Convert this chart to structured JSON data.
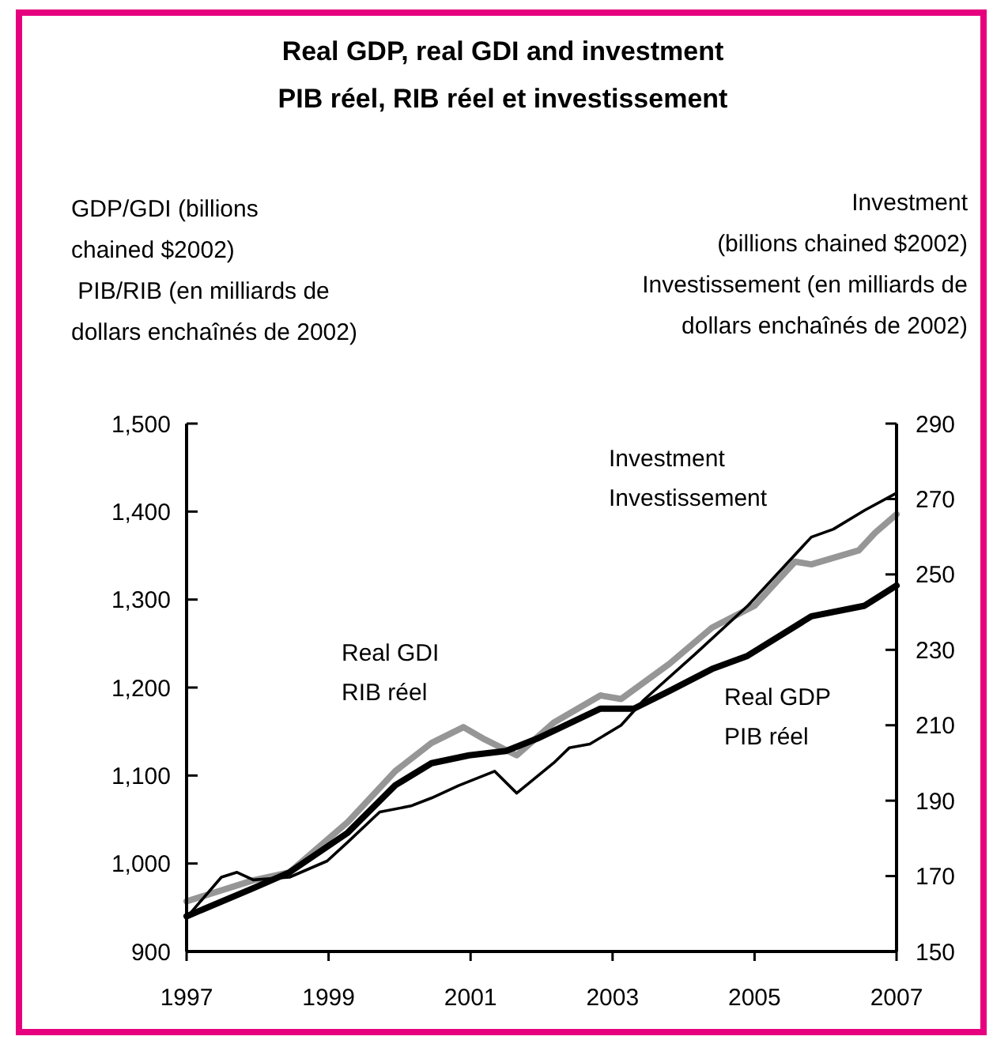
{
  "chart_data": {
    "type": "line",
    "title": "Real GDP, real GDI and investment\nPIB réel, RIB réel et investissement",
    "ylabel": "GDP/GDI (billions\nchained $2002)\n PIB/RIB (en milliards de\ndollars enchaînés de 2002)",
    "y2label": "Investment\n(billions chained $2002)\nInvestissement (en milliards de\ndollars enchaînés de 2002)",
    "xlim": [
      1997,
      2007
    ],
    "xticks": [
      1997,
      1999,
      2001,
      2003,
      2005,
      2007
    ],
    "ylim": [
      900,
      1500
    ],
    "yticks": [
      {
        "value": 900,
        "label": "900"
      },
      {
        "value": 1000,
        "label": "1,000"
      },
      {
        "value": 1100,
        "label": "1,100"
      },
      {
        "value": 1200,
        "label": "1,200"
      },
      {
        "value": 1300,
        "label": "1,300"
      },
      {
        "value": 1400,
        "label": "1,400"
      },
      {
        "value": 1500,
        "label": "1,500"
      }
    ],
    "y2lim": [
      150,
      290
    ],
    "y2ticks": [
      150,
      170,
      190,
      210,
      230,
      250,
      270,
      290
    ],
    "grid": false,
    "series": [
      {
        "name": "Real GDI\nRIB réel",
        "color": "#969696",
        "x": [
          1997,
          1997.94,
          1998.45,
          1999.27,
          1999.94,
          2000.45,
          2000.9,
          2001.2,
          2001.65,
          2002.17,
          2002.83,
          2003.12,
          2003.8,
          2004.4,
          2005.0,
          2005.57,
          2005.8,
          2006.47,
          2006.7,
          2007
        ],
        "values": [
          957,
          981,
          990,
          1047,
          1105,
          1137,
          1155,
          1141,
          1123,
          1160,
          1191,
          1187,
          1227,
          1268,
          1293,
          1343,
          1340,
          1356,
          1376,
          1397
        ]
      },
      {
        "name": "Real GDP\nPIB réel",
        "color": "#000000",
        "x": [
          1997,
          1997.94,
          1998.45,
          1999.27,
          1999.94,
          2000.45,
          2000.98,
          2001.5,
          2001.94,
          2002.83,
          2003.3,
          2003.8,
          2004.4,
          2004.9,
          2005.8,
          2006.55,
          2007
        ],
        "values": [
          940,
          972,
          990,
          1035,
          1089,
          1114,
          1123,
          1128,
          1142,
          1176,
          1176,
          1196,
          1221,
          1236,
          1281,
          1293,
          1316
        ]
      },
      {
        "name": "Investment\nInvestissement",
        "color": "#000000",
        "axis": "y2",
        "x": [
          1997,
          1997.49,
          1997.71,
          1997.94,
          1998.45,
          1998.98,
          1999.27,
          1999.72,
          2000.16,
          2000.45,
          2000.83,
          2001.34,
          2001.65,
          2002.17,
          2002.39,
          2002.68,
          2003.12,
          2003.44,
          2004.17,
          2004.91,
          2005.8,
          2006.11,
          2006.55,
          2007
        ],
        "values": [
          159,
          169.7,
          171,
          169,
          169.7,
          174,
          179,
          187,
          188.6,
          190.7,
          194,
          197.8,
          192,
          200,
          204,
          205,
          210,
          216.7,
          229,
          241.8,
          259.9,
          262,
          267,
          271.6
        ]
      }
    ]
  }
}
